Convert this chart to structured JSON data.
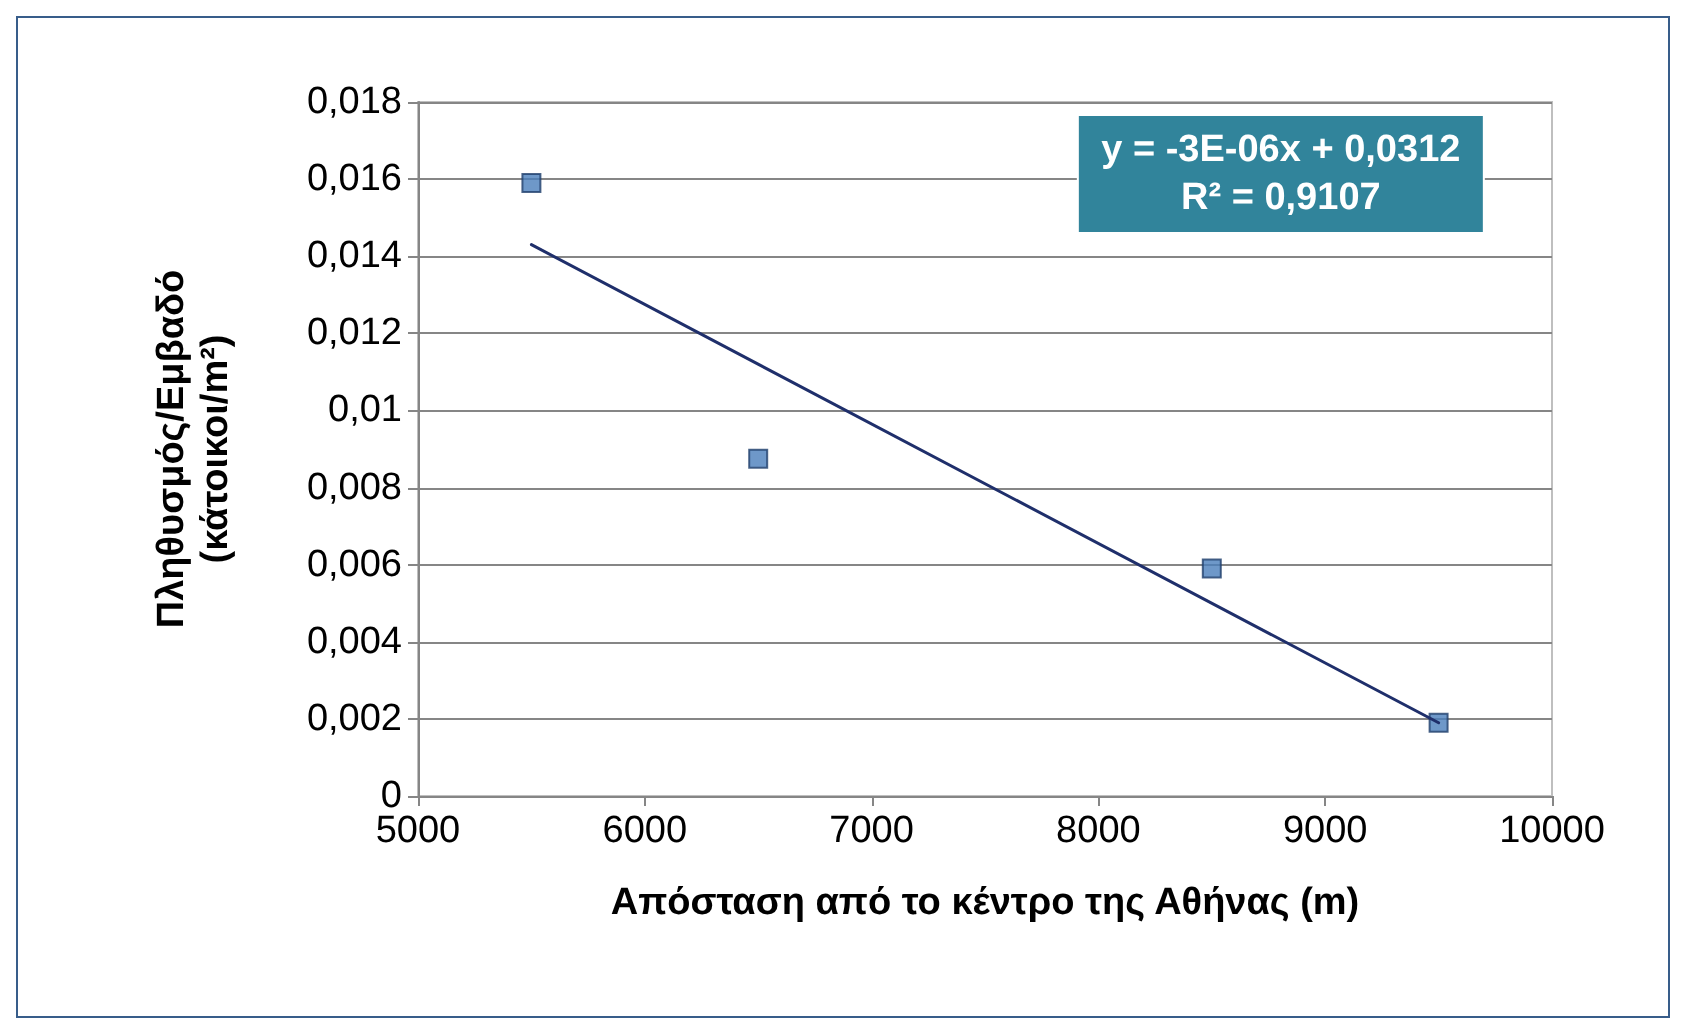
{
  "chart_data": {
    "type": "scatter",
    "xlabel": "Απόσταση από το κέντρο της Αθήνας (m)",
    "ylabel": "Πληθυσμός/Εμβαδό\n(κάτοικοι/m²)",
    "x": [
      5500,
      6500,
      8500,
      9500
    ],
    "series": [
      {
        "color": "#4a7ebb",
        "values": [
          0.0159,
          0.00875,
          0.0059,
          0.0019
        ],
        "marker": "square"
      },
      {
        "type": "line",
        "color": "#1f2f6b",
        "x": [
          5500,
          9500
        ],
        "values": [
          0.0143,
          0.0019
        ],
        "marker": "none",
        "line_style": "solid"
      }
    ],
    "annotations": [
      "y = -3E-06x + 0,0312",
      "R² = 0,9107"
    ],
    "xlim": [
      5000,
      10000
    ],
    "xticks": [
      5000,
      6000,
      7000,
      8000,
      9000,
      10000
    ],
    "ylim": [
      0,
      0.018
    ],
    "yticks": [
      {
        "value": 0,
        "label": "0"
      },
      {
        "value": 0.002,
        "label": "0,002"
      },
      {
        "value": 0.004,
        "label": "0,004"
      },
      {
        "value": 0.006,
        "label": "0,006"
      },
      {
        "value": 0.008,
        "label": "0,008"
      },
      {
        "value": 0.01,
        "label": "0,01"
      },
      {
        "value": 0.012,
        "label": "0,012"
      },
      {
        "value": 0.014,
        "label": "0,014"
      },
      {
        "value": 0.016,
        "label": "0,016"
      },
      {
        "value": 0.018,
        "label": "0,018"
      }
    ],
    "grid": "y"
  }
}
